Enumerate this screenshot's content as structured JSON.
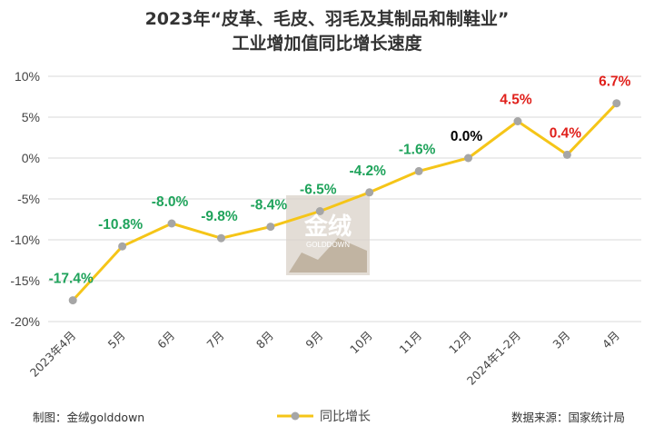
{
  "chart_data": {
    "type": "line",
    "title": "2023年“皮革、毛皮、羽毛及其制品和制鞋业”",
    "subtitle": "工业增加值同比增长速度",
    "categories": [
      "2023年4月",
      "5月",
      "6月",
      "7月",
      "8月",
      "9月",
      "10月",
      "11月",
      "12月",
      "2024年1-2月",
      "3月",
      "4月"
    ],
    "series": [
      {
        "name": "同比增长",
        "values": [
          -17.4,
          -10.8,
          -8.0,
          -9.8,
          -8.4,
          -6.5,
          -4.2,
          -1.6,
          0.0,
          4.5,
          0.4,
          6.7
        ],
        "labels": [
          "-17.4%",
          "-10.8%",
          "-8.0%",
          "-9.8%",
          "-8.4%",
          "-6.5%",
          "-4.2%",
          "-1.6%",
          "0.0%",
          "4.5%",
          "0.4%",
          "6.7%"
        ]
      }
    ],
    "ylim": [
      -20,
      10
    ],
    "yticks": [
      10,
      5,
      0,
      -5,
      -10,
      -15,
      -20
    ],
    "ytick_labels": [
      "10%",
      "5%",
      "0%",
      "-5%",
      "-10%",
      "-15%",
      "-20%"
    ],
    "grid": true,
    "legend_position": "bottom-center",
    "colors": {
      "line": "#F5C518",
      "marker": "#A6A6A6",
      "negative_label": "#1FA35B",
      "zero_label": "#000000",
      "positive_label": "#E0201B",
      "grid": "#D9D9D9"
    }
  },
  "footer": {
    "source_left": "制图：金绒golddown",
    "source_right": "数据来源：国家统计局"
  },
  "watermark": {
    "text": "金绒",
    "subtext": "GOLDDOWN"
  }
}
